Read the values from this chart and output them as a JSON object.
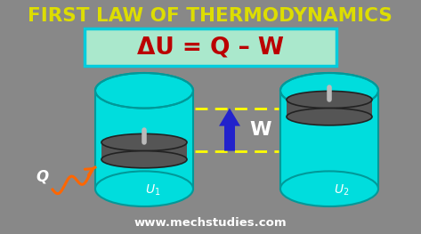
{
  "bg_color": "#888888",
  "title": "FIRST LAW OF THERMODYNAMICS",
  "title_color": "#dddd00",
  "title_fontsize": 15.5,
  "formula": "ΔU = Q – W",
  "formula_color": "#bb0000",
  "formula_fontsize": 19,
  "formula_box_fill": "#aae8cc",
  "formula_box_edge": "#00ccdd",
  "cylinder_fill": "#00dddd",
  "cylinder_edge": "#009999",
  "cylinder_side_fill": "#00bbbb",
  "piston_fill": "#555555",
  "piston_edge": "#222222",
  "arrow_color": "#2222cc",
  "dashed_color": "#ffff00",
  "Q_color": "#ffffff",
  "W_color": "#ffffff",
  "U1_color": "#ffffff",
  "U2_color": "#ffffff",
  "heat_color": "#ff6600",
  "website": "www.mechstudies.com",
  "website_color": "#ffffff",
  "website_fontsize": 9.5
}
